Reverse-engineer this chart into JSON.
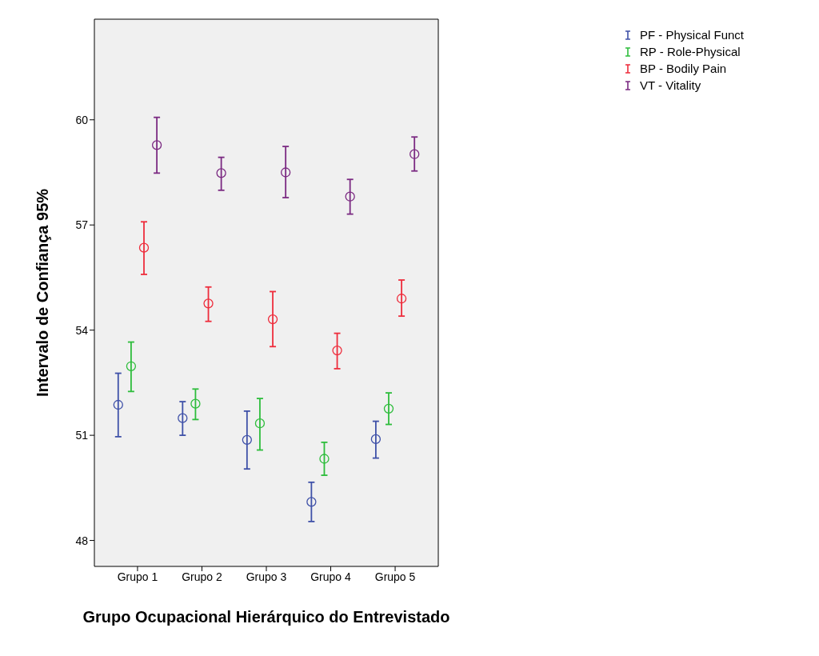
{
  "chart_data": {
    "type": "scatter",
    "xlabel": "Grupo Ocupacional Hierárquico do Entrevistado",
    "ylabel": "Intervalo de Confiança 95%",
    "categories": [
      "Grupo 1",
      "Grupo 2",
      "Grupo 3",
      "Grupo 4",
      "Grupo 5"
    ],
    "series": [
      {
        "name": "PF - Physical Funct",
        "color": "#3f51a8",
        "values": [
          51.87,
          51.49,
          50.87,
          49.1,
          50.89
        ],
        "errors": [
          [
            50.96,
            52.77
          ],
          [
            51.0,
            51.96
          ],
          [
            50.04,
            51.69
          ],
          [
            48.54,
            49.66
          ],
          [
            50.35,
            51.4
          ]
        ]
      },
      {
        "name": "RP - Role-Physical",
        "color": "#2ebd3c",
        "values": [
          52.97,
          51.9,
          51.34,
          50.33,
          51.76
        ],
        "errors": [
          [
            52.25,
            53.66
          ],
          [
            51.45,
            52.32
          ],
          [
            50.58,
            52.05
          ],
          [
            49.86,
            50.8
          ],
          [
            51.31,
            52.21
          ]
        ]
      },
      {
        "name": "BP - Bodily Pain",
        "color": "#ee2d3c",
        "values": [
          56.35,
          54.76,
          54.31,
          53.42,
          54.9
        ],
        "errors": [
          [
            55.59,
            57.09
          ],
          [
            54.25,
            55.23
          ],
          [
            53.53,
            55.1
          ],
          [
            52.9,
            53.91
          ],
          [
            54.4,
            55.43
          ]
        ]
      },
      {
        "name": "VT - Vitality",
        "color": "#7b2a82",
        "values": [
          59.28,
          58.48,
          58.5,
          57.81,
          59.02
        ],
        "errors": [
          [
            58.48,
            60.07
          ],
          [
            57.99,
            58.93
          ],
          [
            57.78,
            59.24
          ],
          [
            57.31,
            58.3
          ],
          [
            58.54,
            59.51
          ]
        ]
      }
    ],
    "ylim": [
      47.26,
      62.87
    ],
    "yticks": [
      48,
      51,
      54,
      57,
      60
    ],
    "grid": false,
    "legend": "top right",
    "marker": "circle"
  }
}
